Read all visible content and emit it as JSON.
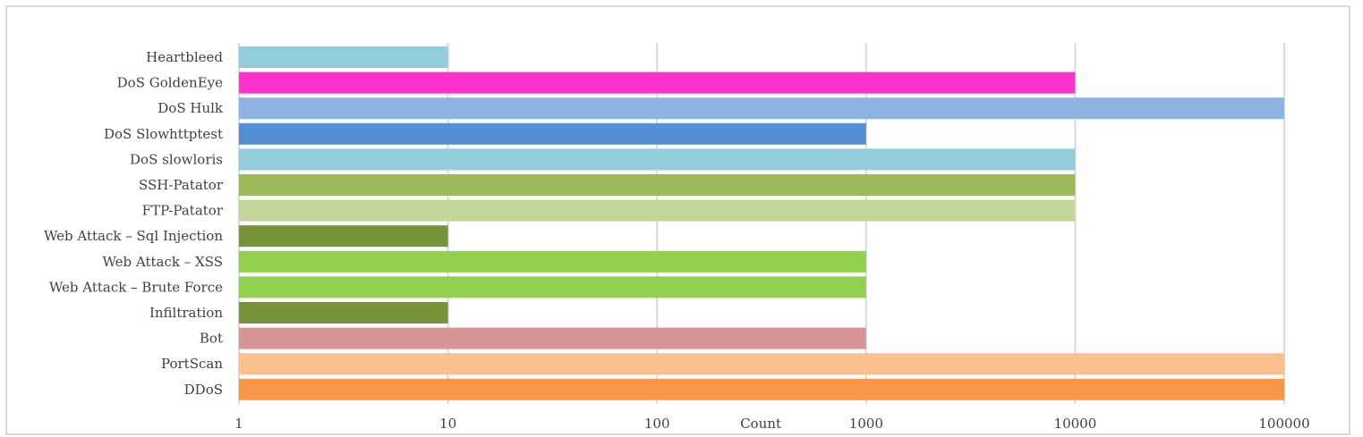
{
  "chart_data": {
    "type": "bar",
    "orientation": "horizontal",
    "categories": [
      "Heartbleed",
      "DoS GoldenEye",
      "DoS Hulk",
      "DoS Slowhttptest",
      "DoS slowloris",
      "SSH-Patator",
      "FTP-Patator",
      "Web Attack – Sql Injection",
      "Web Attack – XSS",
      "Web Attack – Brute Force",
      "Infiltration",
      "Bot",
      "PortScan",
      "DDoS"
    ],
    "values": [
      10,
      10000,
      100000,
      1000,
      10000,
      10000,
      10000,
      10,
      1000,
      1000,
      10,
      1000,
      100000,
      100000
    ],
    "colors": [
      "#92cddc",
      "#ff33cc",
      "#8eb4e3",
      "#558ed5",
      "#93cddd",
      "#9bbb59",
      "#c4d79b",
      "#77933c",
      "#92d050",
      "#92d050",
      "#77933c",
      "#d99594",
      "#fac090",
      "#f79646"
    ],
    "xlabel": "Count",
    "xscale": "log",
    "xlim": [
      1,
      100000
    ],
    "xticks": [
      "1",
      "10",
      "100",
      "1000",
      "10000",
      "100000"
    ],
    "grid": true,
    "gridline_color": "#d9d9d9"
  }
}
